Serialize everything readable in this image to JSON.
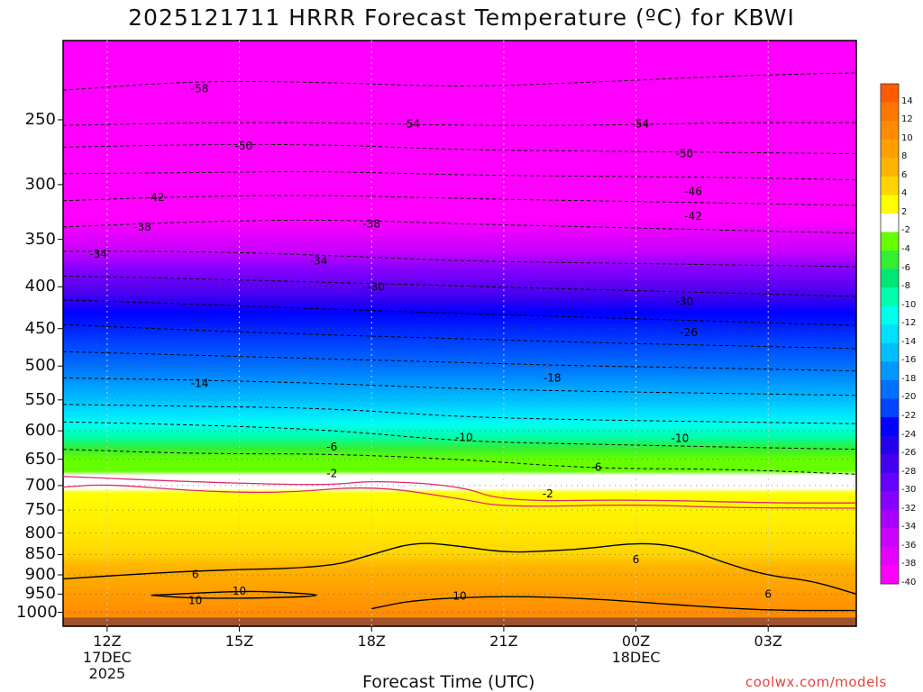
{
  "title": "2025121711 HRRR Forecast Temperature (ºC) for KBWI",
  "xaxis_title": "Forecast Time (UTC)",
  "credit": "coolwx.com/models",
  "colors": {
    "background": "#ffffff",
    "ground": "#a0522d",
    "freezing_line": "#e0286e",
    "contour_positive": "#000000",
    "contour_negative": "#000000"
  },
  "chart_data": {
    "type": "heatmap",
    "title": "2025121711 HRRR Forecast Temperature (ºC) for KBWI",
    "xlabel": "Forecast Time (UTC)",
    "ylabel": "",
    "y_scale": "log-pressure (inverted)",
    "ylim_hpa": [
      1040,
      200
    ],
    "xlim_hours": [
      11,
      29
    ],
    "grid": "dotted",
    "y_ticks": [
      250,
      300,
      350,
      400,
      450,
      500,
      550,
      600,
      650,
      700,
      750,
      800,
      850,
      900,
      950,
      1000
    ],
    "x_ticks": [
      {
        "hour": 12,
        "label": "12Z",
        "sub1": "17DEC",
        "sub2": "2025"
      },
      {
        "hour": 15,
        "label": "15Z",
        "sub1": "",
        "sub2": ""
      },
      {
        "hour": 18,
        "label": "18Z",
        "sub1": "",
        "sub2": ""
      },
      {
        "hour": 21,
        "label": "21Z",
        "sub1": "",
        "sub2": ""
      },
      {
        "hour": 24,
        "label": "00Z",
        "sub1": "18DEC",
        "sub2": ""
      },
      {
        "hour": 27,
        "label": "03Z",
        "sub1": "",
        "sub2": ""
      }
    ],
    "colorbar": {
      "labels": [
        "14",
        "12",
        "10",
        "8",
        "6",
        "4",
        "2",
        "-2",
        "-4",
        "-6",
        "-8",
        "-10",
        "-12",
        "-14",
        "-16",
        "-18",
        "-20",
        "-22",
        "-24",
        "-26",
        "-28",
        "-30",
        "-32",
        "-34",
        "-36",
        "-38",
        "-40"
      ],
      "colors": [
        "#ff5a00",
        "#ff7800",
        "#ff8c00",
        "#ffa000",
        "#ffb400",
        "#ffd400",
        "#ffff00",
        "#ffffff",
        "#66ff00",
        "#33ee33",
        "#00e676",
        "#00ffaa",
        "#00ffee",
        "#00e0ff",
        "#00c0ff",
        "#0099ff",
        "#0070ff",
        "#0044ff",
        "#0000ff",
        "#2200ee",
        "#4400ee",
        "#6600ff",
        "#8800ff",
        "#aa00ff",
        "#cc00ff",
        "#e600ff",
        "#ff00ff"
      ]
    },
    "isotherms": [
      {
        "value": -58,
        "points": [
          [
            11,
            230
          ],
          [
            14,
            224
          ],
          [
            17,
            225
          ],
          [
            20,
            228
          ],
          [
            23,
            225
          ],
          [
            26,
            221
          ],
          [
            29,
            219
          ]
        ]
      },
      {
        "value": -54,
        "points": [
          [
            11,
            254
          ],
          [
            14,
            252
          ],
          [
            17,
            252
          ],
          [
            20,
            254
          ],
          [
            23,
            254
          ],
          [
            26,
            252
          ],
          [
            29,
            252
          ]
        ]
      },
      {
        "value": -50,
        "points": [
          [
            11,
            270
          ],
          [
            14,
            268
          ],
          [
            17,
            268
          ],
          [
            20,
            272
          ],
          [
            23,
            273
          ],
          [
            26,
            274
          ],
          [
            29,
            275
          ]
        ]
      },
      {
        "value": -46,
        "points": [
          [
            11,
            291
          ],
          [
            14,
            290
          ],
          [
            17,
            289
          ],
          [
            20,
            292
          ],
          [
            23,
            293
          ],
          [
            26,
            294
          ],
          [
            29,
            296
          ]
        ]
      },
      {
        "value": -42,
        "points": [
          [
            11,
            314
          ],
          [
            14,
            310
          ],
          [
            17,
            309
          ],
          [
            20,
            312
          ],
          [
            23,
            314
          ],
          [
            26,
            316
          ],
          [
            29,
            318
          ]
        ]
      },
      {
        "value": -38,
        "points": [
          [
            11,
            338
          ],
          [
            14,
            333
          ],
          [
            17,
            331
          ],
          [
            20,
            335
          ],
          [
            23,
            338
          ],
          [
            26,
            341
          ],
          [
            29,
            344
          ]
        ]
      },
      {
        "value": -34,
        "points": [
          [
            11,
            362
          ],
          [
            14,
            362
          ],
          [
            17,
            366
          ],
          [
            20,
            372
          ],
          [
            23,
            374
          ],
          [
            26,
            376
          ],
          [
            29,
            378
          ]
        ]
      },
      {
        "value": -30,
        "points": [
          [
            11,
            388
          ],
          [
            14,
            391
          ],
          [
            17,
            395
          ],
          [
            20,
            399
          ],
          [
            23,
            403
          ],
          [
            26,
            407
          ],
          [
            29,
            411
          ]
        ]
      },
      {
        "value": -26,
        "points": [
          [
            11,
            415
          ],
          [
            14,
            420
          ],
          [
            17,
            426
          ],
          [
            20,
            431
          ],
          [
            23,
            436
          ],
          [
            26,
            441
          ],
          [
            29,
            446
          ]
        ]
      },
      {
        "value": -22,
        "points": [
          [
            11,
            445
          ],
          [
            14,
            452
          ],
          [
            17,
            458
          ],
          [
            20,
            463
          ],
          [
            23,
            468
          ],
          [
            26,
            472
          ],
          [
            29,
            476
          ]
        ]
      },
      {
        "value": -18,
        "points": [
          [
            11,
            480
          ],
          [
            14,
            485
          ],
          [
            17,
            490
          ],
          [
            20,
            495
          ],
          [
            23,
            500
          ],
          [
            26,
            503
          ],
          [
            29,
            507
          ]
        ]
      },
      {
        "value": -14,
        "points": [
          [
            11,
            517
          ],
          [
            14,
            520
          ],
          [
            17,
            525
          ],
          [
            20,
            533
          ],
          [
            23,
            537
          ],
          [
            26,
            540
          ],
          [
            29,
            543
          ]
        ]
      },
      {
        "value": -10,
        "points": [
          [
            11,
            557
          ],
          [
            14,
            560
          ],
          [
            17,
            563
          ],
          [
            20,
            577
          ],
          [
            23,
            582
          ],
          [
            26,
            585
          ],
          [
            29,
            588
          ]
        ]
      },
      {
        "value": -6,
        "points": [
          [
            11,
            585
          ],
          [
            14,
            590
          ],
          [
            17,
            598
          ],
          [
            20,
            618
          ],
          [
            23,
            623
          ],
          [
            26,
            628
          ],
          [
            29,
            632
          ]
        ]
      },
      {
        "value": -2,
        "points": [
          [
            11,
            632
          ],
          [
            14,
            640
          ],
          [
            17,
            640
          ],
          [
            20,
            650
          ],
          [
            23,
            667
          ],
          [
            26,
            668
          ],
          [
            29,
            678
          ]
        ]
      }
    ],
    "freezing_lines": [
      [
        [
          11,
          682
        ],
        [
          14,
          693
        ],
        [
          17,
          700
        ],
        [
          18,
          690
        ],
        [
          20,
          700
        ],
        [
          21,
          732
        ],
        [
          24,
          728
        ],
        [
          27,
          735
        ],
        [
          29,
          735
        ]
      ],
      [
        [
          11,
          703
        ],
        [
          12,
          697
        ],
        [
          14,
          711
        ],
        [
          16,
          715
        ],
        [
          18,
          700
        ],
        [
          20,
          726
        ],
        [
          21,
          744
        ],
        [
          24,
          738
        ],
        [
          26,
          745
        ],
        [
          29,
          746
        ]
      ]
    ],
    "positive_contours": [
      {
        "value": 6,
        "points": [
          [
            11,
            910
          ],
          [
            14,
            889
          ],
          [
            17,
            882
          ],
          [
            18,
            850
          ],
          [
            19,
            820
          ],
          [
            20,
            830
          ],
          [
            21,
            845
          ],
          [
            22,
            842
          ],
          [
            23,
            835
          ],
          [
            24,
            822
          ],
          [
            25,
            830
          ],
          [
            26,
            870
          ],
          [
            27,
            902
          ],
          [
            28,
            915
          ],
          [
            29,
            950
          ]
        ]
      },
      {
        "value": 10,
        "points": [
          [
            13,
            953
          ],
          [
            15,
            942
          ],
          [
            16,
            945
          ],
          [
            17,
            953
          ],
          [
            16,
            960
          ],
          [
            14,
            962
          ],
          [
            13,
            953
          ]
        ]
      },
      {
        "value": 10,
        "points": [
          [
            18,
            990
          ],
          [
            19,
            965
          ],
          [
            21,
            955
          ],
          [
            23,
            962
          ],
          [
            25,
            980
          ],
          [
            27,
            995
          ],
          [
            29,
            995
          ]
        ]
      }
    ],
    "contour_labels": [
      {
        "value": "-58",
        "hour": 14.1,
        "hpa": 229
      },
      {
        "value": "-54",
        "hour": 18.9,
        "hpa": 253
      },
      {
        "value": "-54",
        "hour": 24.1,
        "hpa": 253
      },
      {
        "value": "-50",
        "hour": 15.1,
        "hpa": 269
      },
      {
        "value": "-50",
        "hour": 25.1,
        "hpa": 275
      },
      {
        "value": "-46",
        "hour": 25.3,
        "hpa": 306
      },
      {
        "value": "-42",
        "hour": 13.1,
        "hpa": 311
      },
      {
        "value": "-42",
        "hour": 25.3,
        "hpa": 328
      },
      {
        "value": "-38",
        "hour": 12.8,
        "hpa": 338
      },
      {
        "value": "-38",
        "hour": 18.0,
        "hpa": 335
      },
      {
        "value": "-34",
        "hour": 11.8,
        "hpa": 365
      },
      {
        "value": "-34",
        "hour": 16.8,
        "hpa": 372
      },
      {
        "value": "-30",
        "hour": 18.1,
        "hpa": 400
      },
      {
        "value": "-30",
        "hour": 25.1,
        "hpa": 417
      },
      {
        "value": "-26",
        "hour": 25.2,
        "hpa": 455
      },
      {
        "value": "-18",
        "hour": 22.1,
        "hpa": 517
      },
      {
        "value": "-14",
        "hour": 14.1,
        "hpa": 525
      },
      {
        "value": "-10",
        "hour": 20.1,
        "hpa": 611
      },
      {
        "value": "-10",
        "hour": 25.0,
        "hpa": 613
      },
      {
        "value": "-6",
        "hour": 17.1,
        "hpa": 628
      },
      {
        "value": "-6",
        "hour": 23.1,
        "hpa": 665
      },
      {
        "value": "-2",
        "hour": 17.1,
        "hpa": 677
      },
      {
        "value": "-2",
        "hour": 22.0,
        "hpa": 716
      },
      {
        "value": "6",
        "hour": 24.0,
        "hpa": 862
      },
      {
        "value": "6",
        "hour": 14.0,
        "hpa": 899
      },
      {
        "value": "6",
        "hour": 27.0,
        "hpa": 950
      },
      {
        "value": "10",
        "hour": 15.0,
        "hpa": 942
      },
      {
        "value": "10",
        "hour": 14.0,
        "hpa": 968
      },
      {
        "value": "10",
        "hour": 20.0,
        "hpa": 955
      }
    ]
  }
}
